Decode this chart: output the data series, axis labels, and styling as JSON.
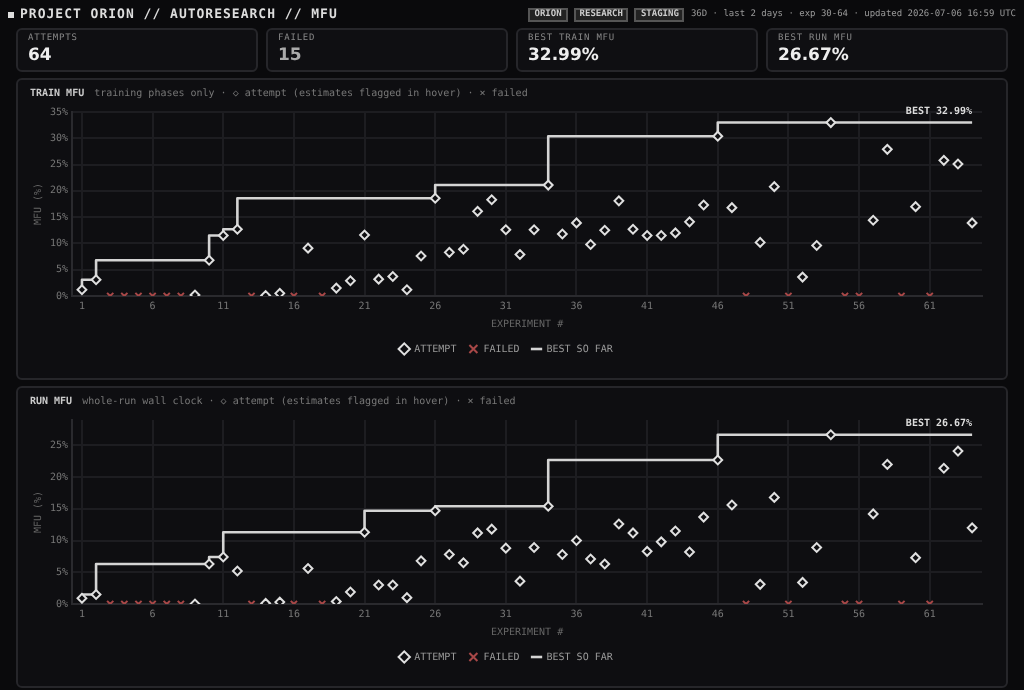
{
  "chart_data": [
    {
      "type": "other",
      "title": "PROJECT ORION // AUTORESEARCH // MFU",
      "categories": [
        "ATTEMPTS",
        "FAILED",
        "BEST TRAIN MFU",
        "BEST RUN MFU"
      ],
      "value_labels": [
        "64",
        "15",
        "32.99%",
        "26.67%"
      ],
      "annotations": [
        "ORION",
        "RESEARCH",
        "STAGING",
        "36D · last 2 days · exp 30-64 · updated 2026-07-06 16:59 UTC"
      ]
    },
    {
      "type": "scatter",
      "title": "TRAIN MFU",
      "subtitle": "training phases only · ◇ attempt (estimates flagged in hover) · × failed",
      "xlabel": "EXPERIMENT #",
      "ylabel": "MFU (%)",
      "xlim": [
        0.3,
        64.7
      ],
      "xticks": [
        1,
        6,
        11,
        16,
        21,
        26,
        31,
        36,
        41,
        46,
        51,
        56,
        61
      ],
      "ylim": [
        0,
        35
      ],
      "yticks": [
        {
          "value": 0,
          "label": "0%"
        },
        {
          "value": 5,
          "label": "5%"
        },
        {
          "value": 10,
          "label": "10%"
        },
        {
          "value": 15,
          "label": "15%"
        },
        {
          "value": 20,
          "label": "20%"
        },
        {
          "value": 25,
          "label": "25%"
        },
        {
          "value": 30,
          "label": "30%"
        },
        {
          "value": 35,
          "label": "35%"
        }
      ],
      "grid": true,
      "legend": "bottom",
      "series": [
        {
          "name": "ATTEMPT",
          "type": "scatter",
          "marker": "diamond",
          "color": "#e0e0e0",
          "x": [
            1,
            2,
            9,
            10,
            11,
            12,
            14,
            15,
            17,
            19,
            20,
            21,
            22,
            23,
            24,
            25,
            26,
            27,
            28,
            29,
            30,
            31,
            32,
            33,
            34,
            35,
            36,
            37,
            38,
            39,
            40,
            41,
            42,
            43,
            44,
            45,
            46,
            47,
            49,
            50,
            52,
            53,
            54,
            57,
            58,
            60,
            62,
            63,
            64
          ],
          "values": [
            1.2,
            3.1,
            0.2,
            6.8,
            11.5,
            12.7,
            0.1,
            0.5,
            9.1,
            1.5,
            2.9,
            11.6,
            3.2,
            3.7,
            1.2,
            7.6,
            18.6,
            8.3,
            8.9,
            16.1,
            18.3,
            12.6,
            7.9,
            12.6,
            21.1,
            11.8,
            13.9,
            9.8,
            12.5,
            18.1,
            12.7,
            11.5,
            11.5,
            12.0,
            14.1,
            17.3,
            30.4,
            16.8,
            10.2,
            20.8,
            3.6,
            9.6,
            32.99,
            14.4,
            27.9,
            17.0,
            25.8,
            25.1,
            13.9
          ]
        },
        {
          "name": "FAILED",
          "type": "scatter",
          "marker": "cross",
          "color": "#a84848",
          "x": [
            3,
            4,
            5,
            6,
            7,
            8,
            13,
            16,
            18,
            48,
            51,
            55,
            56,
            59,
            61
          ],
          "values": [
            0,
            0,
            0,
            0,
            0,
            0,
            0,
            0,
            0,
            0,
            0,
            0,
            0,
            0,
            0
          ]
        },
        {
          "name": "BEST SO FAR",
          "type": "step",
          "marker": "none",
          "color": "#d4d4d4",
          "x": [
            1,
            2,
            10,
            11,
            12,
            26,
            34,
            46,
            54,
            64
          ],
          "values": [
            1.2,
            3.1,
            6.8,
            11.5,
            12.7,
            18.6,
            21.1,
            30.4,
            32.99,
            32.99
          ]
        }
      ],
      "annotations": [
        {
          "text": "BEST 32.99%",
          "x": 64,
          "y": 32.99
        }
      ]
    },
    {
      "type": "scatter",
      "title": "RUN MFU",
      "subtitle": "whole-run wall clock · ◇ attempt (estimates flagged in hover) · × failed",
      "xlabel": "EXPERIMENT #",
      "ylabel": "MFU (%)",
      "xlim": [
        0.3,
        64.7
      ],
      "xticks": [
        1,
        6,
        11,
        16,
        21,
        26,
        31,
        36,
        41,
        46,
        51,
        56,
        61
      ],
      "ylim": [
        0,
        29
      ],
      "yticks": [
        {
          "value": 0,
          "label": "0%"
        },
        {
          "value": 5,
          "label": "5%"
        },
        {
          "value": 10,
          "label": "10%"
        },
        {
          "value": 15,
          "label": "15%"
        },
        {
          "value": 20,
          "label": "20%"
        },
        {
          "value": 25,
          "label": "25%"
        }
      ],
      "grid": true,
      "legend": "bottom",
      "series": [
        {
          "name": "ATTEMPT",
          "type": "scatter",
          "marker": "diamond",
          "color": "#e0e0e0",
          "x": [
            1,
            2,
            9,
            10,
            11,
            12,
            14,
            15,
            17,
            19,
            20,
            21,
            22,
            23,
            24,
            25,
            26,
            27,
            28,
            29,
            30,
            31,
            32,
            33,
            34,
            35,
            36,
            37,
            38,
            39,
            40,
            41,
            42,
            43,
            44,
            45,
            46,
            47,
            49,
            50,
            52,
            53,
            54,
            57,
            58,
            60,
            62,
            63,
            64
          ],
          "values": [
            0.9,
            1.5,
            0.0,
            6.3,
            7.4,
            5.2,
            0.1,
            0.3,
            5.6,
            0.4,
            1.9,
            11.3,
            3.0,
            3.0,
            1.0,
            6.8,
            14.7,
            7.8,
            6.5,
            11.2,
            11.8,
            8.8,
            3.6,
            8.9,
            15.4,
            7.8,
            10.0,
            7.1,
            6.3,
            12.6,
            11.2,
            8.3,
            9.8,
            11.5,
            8.2,
            13.7,
            22.7,
            15.6,
            3.1,
            16.8,
            3.4,
            8.9,
            26.67,
            14.2,
            22.0,
            7.3,
            21.4,
            24.1,
            12.0
          ]
        },
        {
          "name": "FAILED",
          "type": "scatter",
          "marker": "cross",
          "color": "#a84848",
          "x": [
            3,
            4,
            5,
            6,
            7,
            8,
            13,
            16,
            18,
            48,
            51,
            55,
            56,
            59,
            61
          ],
          "values": [
            0,
            0,
            0,
            0,
            0,
            0,
            0,
            0,
            0,
            0,
            0,
            0,
            0,
            0,
            0
          ]
        },
        {
          "name": "BEST SO FAR",
          "type": "step",
          "marker": "none",
          "color": "#d4d4d4",
          "x": [
            1,
            2,
            10,
            11,
            21,
            26,
            34,
            46,
            54,
            64
          ],
          "values": [
            0.9,
            1.5,
            6.3,
            7.4,
            11.3,
            14.7,
            15.4,
            22.7,
            26.67,
            26.67
          ]
        }
      ],
      "annotations": [
        {
          "text": "BEST 26.67%",
          "x": 64,
          "y": 26.67
        }
      ]
    }
  ]
}
